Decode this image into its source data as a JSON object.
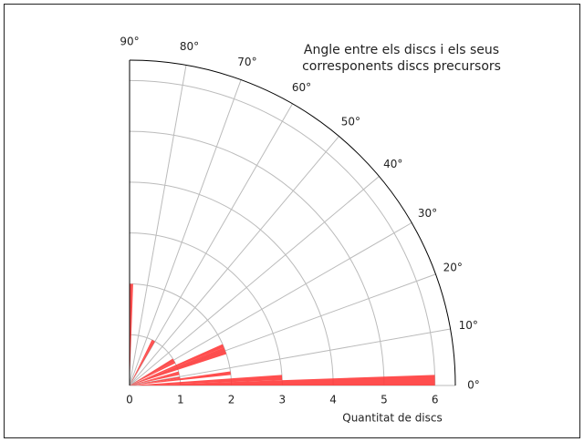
{
  "chart_data": {
    "type": "polar-bar",
    "title": [
      "Angle entre els discs i els seus",
      "corresponents discs precursors"
    ],
    "xlabel": "Quantitat de discs",
    "color": "#ff3b3b",
    "bins": [
      0,
      2,
      4,
      6,
      8,
      10,
      12,
      14,
      16,
      18,
      20,
      22,
      24,
      26,
      28,
      30,
      32,
      34,
      36,
      38,
      40,
      42,
      44,
      46,
      48,
      50,
      52,
      54,
      56,
      58,
      60,
      62,
      64,
      66,
      68,
      70,
      72,
      74,
      76,
      78,
      80,
      82,
      84,
      86,
      88,
      90
    ],
    "counts": [
      6,
      3,
      0,
      2,
      1,
      0,
      1,
      1,
      0,
      2,
      2,
      2,
      0,
      1,
      1,
      1,
      0,
      0,
      0,
      0,
      0,
      0,
      0,
      0,
      0,
      0,
      0,
      0,
      0,
      0,
      1,
      1,
      0,
      0,
      0,
      0,
      0,
      0,
      0,
      0,
      0,
      0,
      0,
      0,
      2
    ],
    "rlim": [
      0,
      6.4
    ],
    "rticks": [
      0,
      1,
      2,
      3,
      4,
      5,
      6
    ],
    "thetalim": [
      0,
      90
    ],
    "thetaticks": [
      {
        "value": 0,
        "label": "0°"
      },
      {
        "value": 10,
        "label": "10°"
      },
      {
        "value": 20,
        "label": "20°"
      },
      {
        "value": 30,
        "label": "30°"
      },
      {
        "value": 40,
        "label": "40°"
      },
      {
        "value": 50,
        "label": "50°"
      },
      {
        "value": 60,
        "label": "60°"
      },
      {
        "value": 70,
        "label": "70°"
      },
      {
        "value": 80,
        "label": "80°"
      },
      {
        "value": 90,
        "label": "90°"
      }
    ],
    "grid": true
  }
}
